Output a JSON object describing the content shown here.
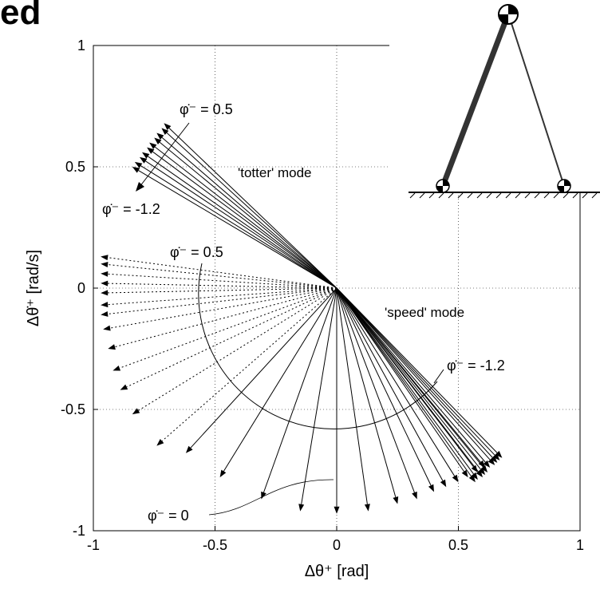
{
  "title_fragment": "ed",
  "chart_data": {
    "type": "vector",
    "xlabel": "Δθ⁺ [rad]",
    "ylabel": "Δθ̇⁺ [rad/s]",
    "xlim": [
      -1,
      1
    ],
    "ylim": [
      -1,
      1
    ],
    "xticks": [
      -1,
      -0.5,
      0,
      0.5,
      1
    ],
    "yticks": [
      -1,
      -0.5,
      0,
      0.5,
      1
    ],
    "grid": true,
    "annotations": {
      "top_phi": "φ̇⁻ = 0.5",
      "top_phi_low": "φ̇⁻ = -1.2",
      "totter": "'totter' mode",
      "mid_phi": "φ̇⁻ = 0.5",
      "speed": "'speed' mode",
      "right_phi": "φ̇⁻ = -1.2",
      "bottom_phi": "φ̇⁻ = 0"
    },
    "series": [
      {
        "style": "dotted",
        "color": "#000000",
        "x": [
          -0.97,
          -0.97,
          -0.97,
          -0.97,
          -0.97,
          -0.97,
          -0.97,
          -0.96,
          -0.94,
          -0.92,
          -0.89,
          -0.84,
          -0.74
        ],
        "values": [
          0.13,
          0.1,
          0.06,
          0.02,
          -0.02,
          -0.07,
          -0.11,
          -0.17,
          -0.25,
          -0.34,
          -0.42,
          -0.52,
          -0.65
        ]
      },
      {
        "style": "solid",
        "color": "#000000",
        "x": [
          -0.62,
          -0.48,
          -0.31,
          -0.15,
          0,
          0.13,
          0.25,
          0.33,
          0.4,
          0.45,
          0.5,
          0.54,
          0.58,
          0.61
        ],
        "values": [
          -0.68,
          -0.78,
          -0.87,
          -0.92,
          -0.93,
          -0.92,
          -0.89,
          -0.87,
          -0.84,
          -0.82,
          -0.8,
          -0.78,
          -0.76,
          -0.74
        ]
      },
      {
        "style": "solid",
        "color": "#000000",
        "x": [
          -0.84,
          -0.83,
          -0.81,
          -0.8,
          -0.78,
          -0.77,
          -0.75,
          -0.74,
          -0.72,
          -0.71
        ],
        "values": [
          0.5,
          0.52,
          0.54,
          0.56,
          0.58,
          0.6,
          0.62,
          0.64,
          0.66,
          0.68
        ]
      },
      {
        "style": "solid",
        "color": "#000000",
        "x": [
          0.68,
          0.67,
          0.66,
          0.65,
          0.63,
          0.62,
          0.61,
          0.6,
          0.58,
          0.57
        ],
        "values": [
          -0.7,
          -0.71,
          -0.72,
          -0.73,
          -0.74,
          -0.76,
          -0.77,
          -0.78,
          -0.79,
          -0.8
        ]
      }
    ]
  }
}
